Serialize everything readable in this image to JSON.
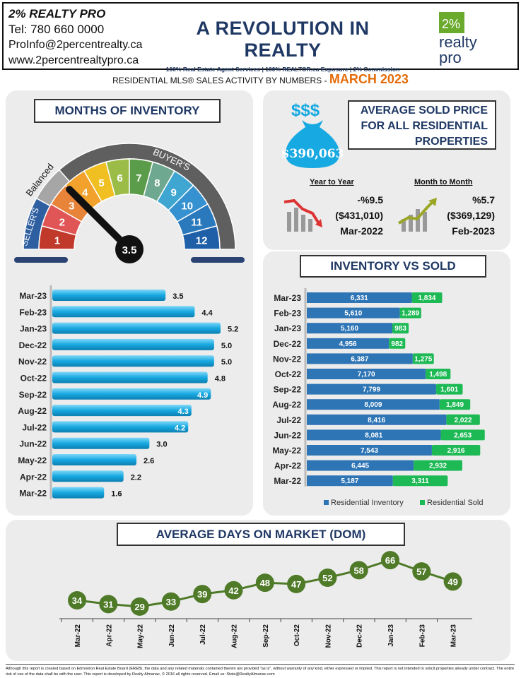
{
  "header": {
    "agent_name": "2% REALTY PRO",
    "phone": "Tel: 780 660 0000",
    "email": "ProInfo@2percentrealty.ca",
    "website": "www.2percentrealtypro.ca",
    "slogan": "A REVOLUTION IN REALTY",
    "tagline": "100% Real Estate Agent Services | 100% REALTOR.ca Exposure | 2% Commission",
    "logo_pct": "2%",
    "logo_word1": "realty",
    "logo_word2": "pro"
  },
  "subtitle": {
    "text": "RESIDENTIAL MLS® SALES ACTIVITY BY NUMBERS",
    "dash": "-",
    "month": "MARCH 2023"
  },
  "gauge": {
    "title": "MONTHS OF INVENTORY",
    "value": "3.5",
    "labels": {
      "sellers": "SELLER'S",
      "balanced": "Balanced",
      "buyers": "BUYER'S"
    },
    "numbers": [
      "1",
      "2",
      "3",
      "4",
      "5",
      "6",
      "7",
      "8",
      "9",
      "10",
      "11",
      "12"
    ]
  },
  "avg_price": {
    "title_line1": "AVERAGE  SOLD PRICE",
    "title_line2": "FOR ALL RESIDENTIAL",
    "title_line3": "PROPERTIES",
    "amount": "$390,063",
    "bag_symbols": "$$$",
    "yoy": {
      "label": "Year to Year",
      "change": "-%9.5",
      "value": "($431,010)",
      "period": "Mar-2022"
    },
    "mom": {
      "label": "Month to Month",
      "change": "%5.7",
      "value": "($369,129)",
      "period": "Feb-2023"
    }
  },
  "inventory_title": "INVENTORY VS SOLD",
  "dom_title": "AVERAGE DAYS ON MARKET (DOM)",
  "footer": "Although this report is created based on Edmonton Real Estate Board (EREB), the data and any related materials contained therein are provided \"as is\", without warranty of any kind, either expressed or implied. This report is not intended to solicit properties already under contract. The entire risk of use of the data shall be with the user. This report is developed by Realty Almanac, © 2016 all rights reserved. Email us: Stats@RealtyAlmanac.com",
  "colors": {
    "navy": "#1f3864",
    "orange": "#e46c0a",
    "bar_blue": "#17a9e1",
    "inventory": "#2e75b6",
    "sold": "#1db954",
    "dom": "#4f7a28"
  },
  "chart_data": [
    {
      "type": "bar",
      "orientation": "horizontal",
      "title": "MONTHS OF INVENTORY",
      "categories": [
        "Mar-23",
        "Feb-23",
        "Jan-23",
        "Dec-22",
        "Nov-22",
        "Oct-22",
        "Sep-22",
        "Aug-22",
        "Jul-22",
        "Jun-22",
        "May-22",
        "Apr-22",
        "Mar-22"
      ],
      "values": [
        3.5,
        4.4,
        5.2,
        5.0,
        5.0,
        4.8,
        4.9,
        4.3,
        4.2,
        3.0,
        2.6,
        2.2,
        1.6
      ],
      "value_labels": [
        "3.5",
        "4.4",
        "5.2",
        "5.0",
        "5.0",
        "4.8",
        "4.9",
        "4.3",
        "4.2",
        "3.0",
        "2.6",
        "2.2",
        "1.6"
      ],
      "xlim": [
        0,
        5.2
      ]
    },
    {
      "type": "bar",
      "orientation": "horizontal",
      "stacked": true,
      "title": "INVENTORY VS SOLD",
      "categories": [
        "Mar-23",
        "Feb-23",
        "Jan-23",
        "Dec-22",
        "Nov-22",
        "Oct-22",
        "Sep-22",
        "Aug-22",
        "Jul-22",
        "Jun-22",
        "May-22",
        "Apr-22",
        "Mar-22"
      ],
      "series": [
        {
          "name": "Residential Inventory",
          "values": [
            6331,
            5610,
            5160,
            4956,
            6387,
            7170,
            7799,
            8009,
            8416,
            8081,
            7543,
            6445,
            5187
          ],
          "labels": [
            "6,331",
            "5,610",
            "5,160",
            "4,956",
            "6,387",
            "7,170",
            "7,799",
            "8,009",
            "8,416",
            "8,081",
            "7,543",
            "6,445",
            "5,187"
          ]
        },
        {
          "name": "Residential Sold",
          "values": [
            1834,
            1289,
            983,
            982,
            1275,
            1498,
            1601,
            1849,
            2022,
            2653,
            2916,
            2932,
            3311
          ],
          "labels": [
            "1,834",
            "1,289",
            "983",
            "982",
            "1,275",
            "1,498",
            "1,601",
            "1,849",
            "2,022",
            "2,653",
            "2,916",
            "2,932",
            "3,311"
          ]
        }
      ],
      "legend": "bottom"
    },
    {
      "type": "line",
      "title": "AVERAGE DAYS ON MARKET (DOM)",
      "x": [
        "Mar-22",
        "Apr-22",
        "May-22",
        "Jun-22",
        "Jul-22",
        "Aug-22",
        "Sep-22",
        "Oct-22",
        "Nov-22",
        "Dec-22",
        "Jan-23",
        "Feb-23",
        "Mar-23"
      ],
      "y": [
        34,
        31,
        29,
        33,
        39,
        42,
        48,
        47,
        52,
        58,
        66,
        57,
        49
      ],
      "ylim": [
        25,
        70
      ]
    }
  ]
}
